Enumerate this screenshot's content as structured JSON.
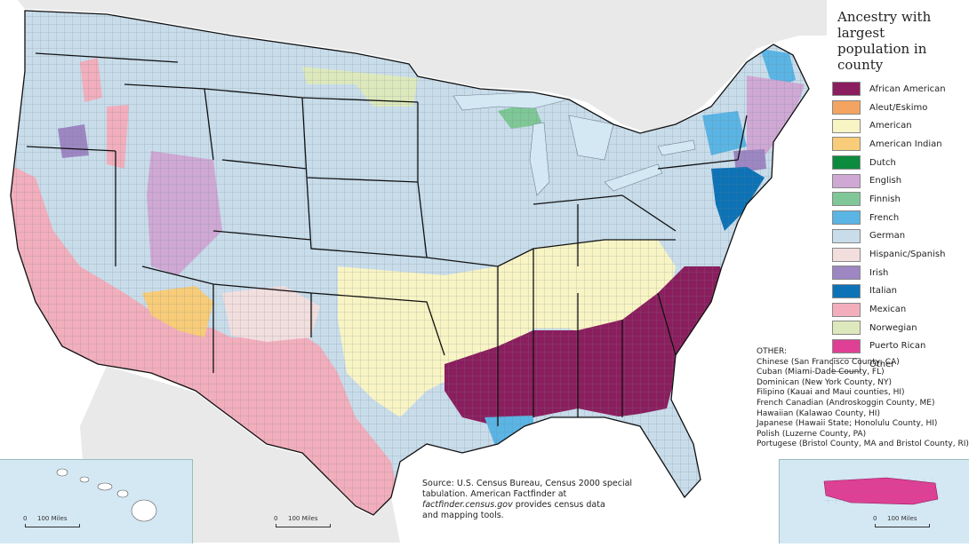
{
  "legend": {
    "title_line1": "Ancestry with largest",
    "title_line2": "population in county",
    "items": [
      {
        "label": "African American",
        "color": "#8b1e5e"
      },
      {
        "label": "Aleut/Eskimo",
        "color": "#f4a460"
      },
      {
        "label": "American",
        "color": "#f8f4c4"
      },
      {
        "label": "American Indian",
        "color": "#f8cc78"
      },
      {
        "label": "Dutch",
        "color": "#0c8a3e"
      },
      {
        "label": "English",
        "color": "#cfa8d4"
      },
      {
        "label": "Finnish",
        "color": "#7fc796"
      },
      {
        "label": "French",
        "color": "#5ab4e4"
      },
      {
        "label": "German",
        "color": "#c8dcea"
      },
      {
        "label": "Hispanic/Spanish",
        "color": "#f3dede"
      },
      {
        "label": "Irish",
        "color": "#9d86c2"
      },
      {
        "label": "Italian",
        "color": "#0d72b6"
      },
      {
        "label": "Mexican",
        "color": "#f2aebc"
      },
      {
        "label": "Norwegian",
        "color": "#dde9bc"
      },
      {
        "label": "Puerto Rican",
        "color": "#df3f94"
      },
      {
        "label": "Other",
        "color": "#ffffff"
      }
    ]
  },
  "other": {
    "heading": "OTHER:",
    "items": [
      "Chinese (San Francisco County, CA)",
      "Cuban (Miami-Dade County, FL)",
      "Dominican (New York County, NY)",
      "Filipino (Kauai and Maui counties, HI)",
      "French Canadian (Androskoggin County, ME)",
      "Hawaiian (Kalawao County, HI)",
      "Japanese (Hawaii State; Honolulu County, HI)",
      "Polish (Luzerne County, PA)",
      "Portugese (Bristol County, MA and Bristol County, RI)"
    ]
  },
  "source": {
    "line1": "Source: U.S. Census Bureau, Census 2000 special",
    "line2": "tabulation. American Factfinder at",
    "line3_italic": "factfinder.census.gov",
    "line3_rest": " provides census data",
    "line4": "and mapping tools."
  },
  "scales": {
    "zero": "0",
    "miles": "100 Miles"
  },
  "map_colors": {
    "ocean": "#ffffff",
    "land_outside": "#e9e9e9",
    "lake": "#d4e8f4",
    "state_border": "#111111",
    "county_border": "#6e7f8c"
  }
}
